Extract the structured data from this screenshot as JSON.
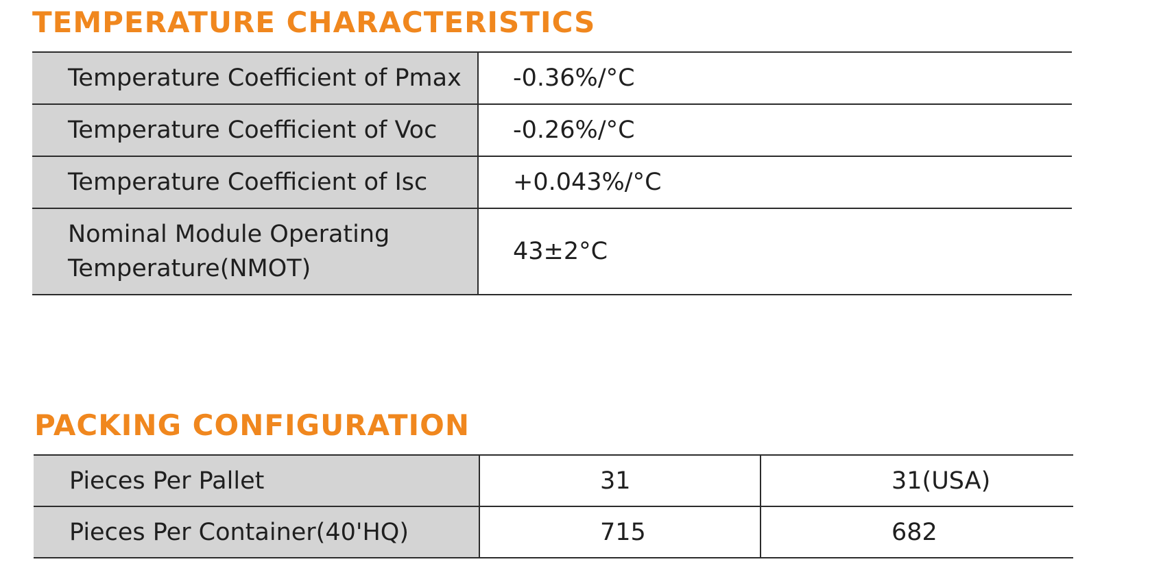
{
  "temperature": {
    "title": "TEMPERATURE CHARACTERISTICS",
    "rows": [
      {
        "label": "Temperature Coefficient of Pmax",
        "value": "-0.36%/°C"
      },
      {
        "label": "Temperature Coefficient of Voc",
        "value": "-0.26%/°C"
      },
      {
        "label": "Temperature Coefficient of Isc",
        "value": "+0.043%/°C"
      },
      {
        "label_line1": "Nominal Module Operating",
        "label_line2": "Temperature(NMOT)",
        "value": "43±2°C"
      }
    ]
  },
  "packing": {
    "title": "PACKING CONFIGURATION",
    "rows": [
      {
        "label": "Pieces Per Pallet",
        "value1": "31",
        "value2": "31(USA)"
      },
      {
        "label": "Pieces Per Container(40'HQ)",
        "value1": "715",
        "value2": "682"
      }
    ]
  },
  "colors": {
    "accent": "#f0871e",
    "label_background": "#d4d4d4"
  }
}
